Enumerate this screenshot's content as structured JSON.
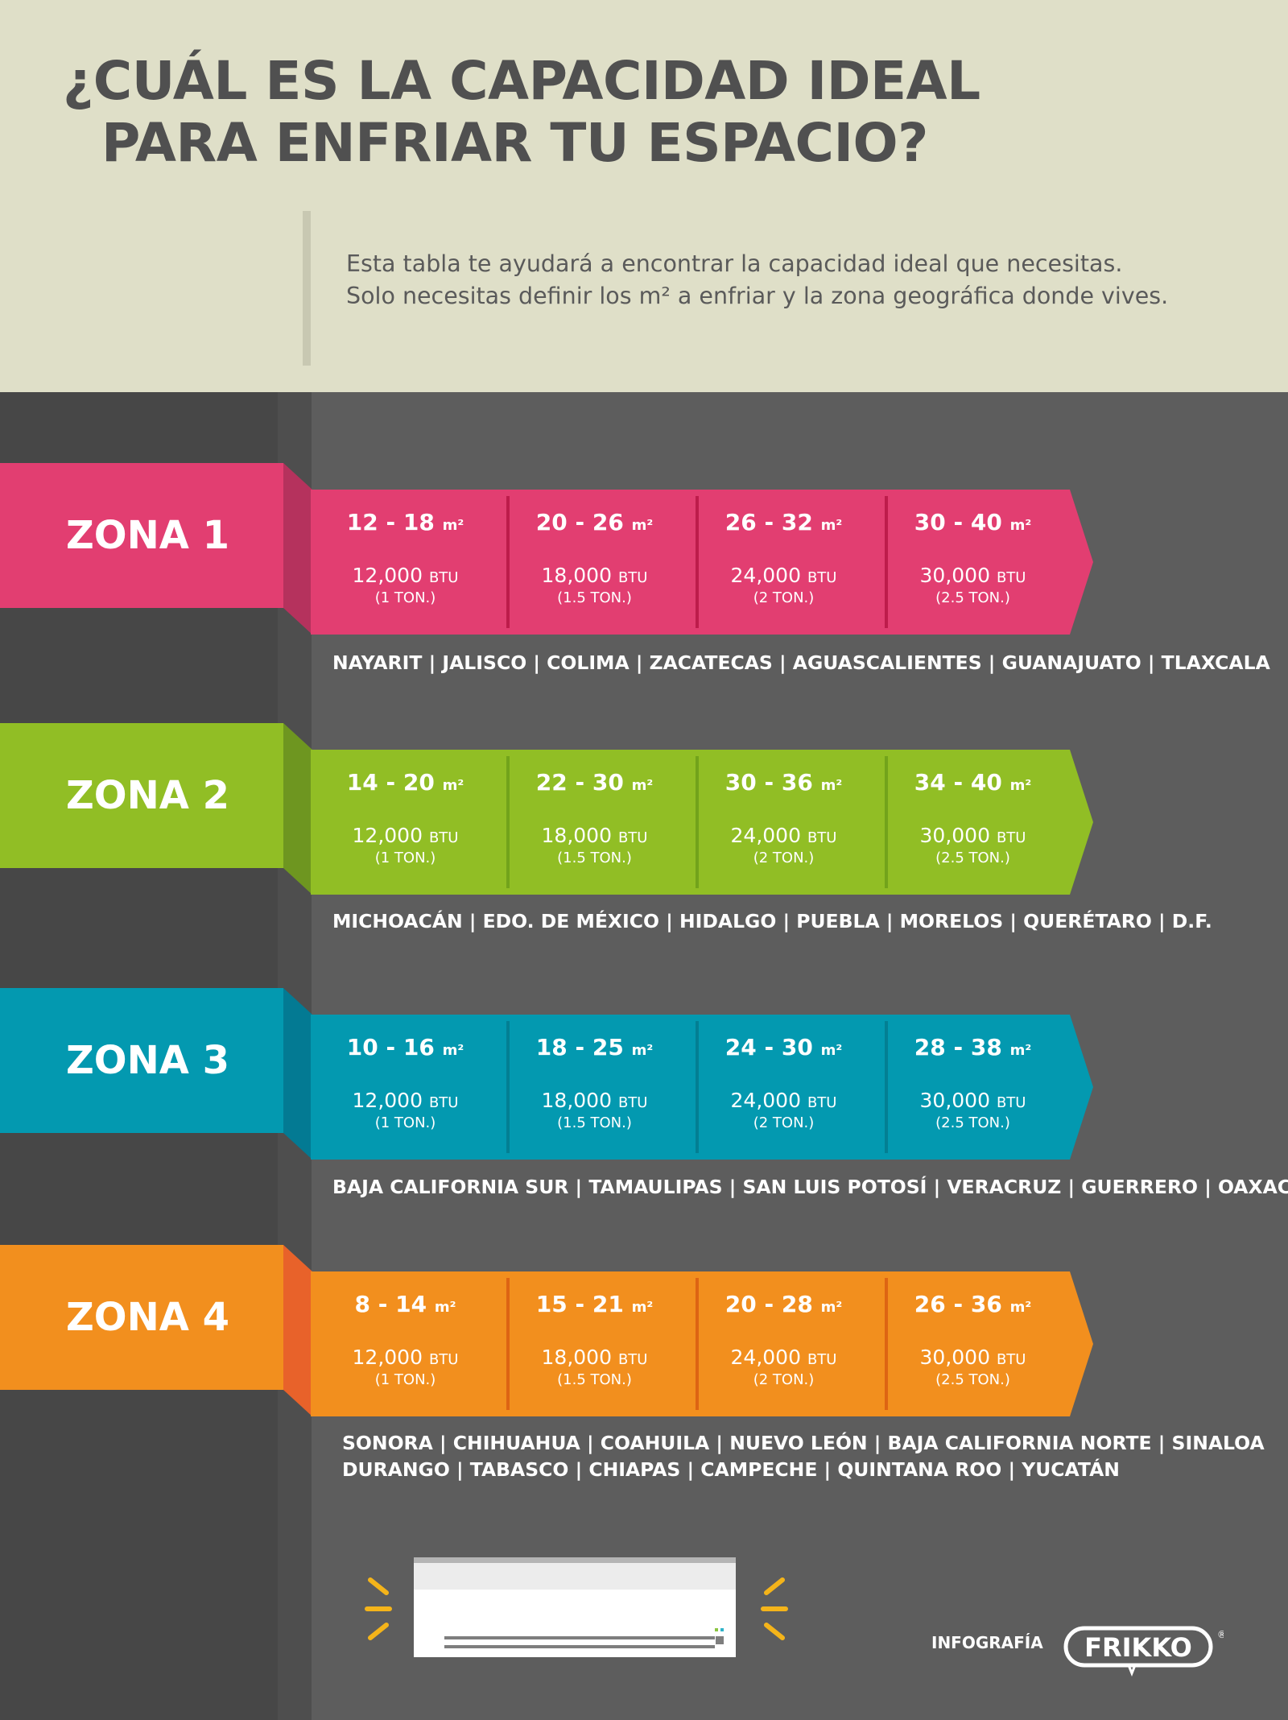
{
  "title": {
    "line1": "¿CUÁL ES LA CAPACIDAD IDEAL",
    "line2": "PARA ENFRIAR TU ESPACIO?"
  },
  "intro": {
    "line1": "Esta tabla te ayudará a encontrar la capacidad ideal que necesitas.",
    "line2": "Solo necesitas definir los  m² a enfriar y la zona geográfica donde vives."
  },
  "area_unit": "m²",
  "btu_unit": "BTU",
  "zones": [
    {
      "label": "ZONA 1",
      "color": "#e23e71",
      "fold_color": "#b5325d",
      "sep_color": "#bd1c4b",
      "cells": [
        {
          "range": "12 - 18",
          "btu": "12,000",
          "tons": "(1 TON.)"
        },
        {
          "range": "20 - 26",
          "btu": "18,000",
          "tons": "(1.5 TON.)"
        },
        {
          "range": "26 - 32",
          "btu": "24,000",
          "tons": "(2 TON.)"
        },
        {
          "range": "30 - 40",
          "btu": "30,000",
          "tons": "(2.5 TON.)"
        }
      ],
      "states": [
        "NAYARIT | JALISCO | COLIMA | ZACATECAS | AGUASCALIENTES | GUANAJUATO | TLAXCALA"
      ]
    },
    {
      "label": "ZONA 2",
      "color": "#91be25",
      "fold_color": "#6e9620",
      "sep_color": "#72a31b",
      "cells": [
        {
          "range": "14 - 20",
          "btu": "12,000",
          "tons": "(1 TON.)"
        },
        {
          "range": "22 - 30",
          "btu": "18,000",
          "tons": "(1.5 TON.)"
        },
        {
          "range": "30 - 36",
          "btu": "24,000",
          "tons": "(2 TON.)"
        },
        {
          "range": "34 - 40",
          "btu": "30,000",
          "tons": "(2.5 TON.)"
        }
      ],
      "states": [
        "MICHOACÁN | EDO. DE MÉXICO | HIDALGO | PUEBLA | MORELOS | QUERÉTARO | D.F."
      ]
    },
    {
      "label": "ZONA 3",
      "color": "#0399b0",
      "fold_color": "#037a93",
      "sep_color": "#037f93",
      "cells": [
        {
          "range": "10 - 16",
          "btu": "12,000",
          "tons": "(1 TON.)"
        },
        {
          "range": "18 - 25",
          "btu": "18,000",
          "tons": "(1.5 TON.)"
        },
        {
          "range": "24 - 30",
          "btu": "24,000",
          "tons": "(2 TON.)"
        },
        {
          "range": "28 - 38",
          "btu": "30,000",
          "tons": "(2.5 TON.)"
        }
      ],
      "states": [
        "BAJA CALIFORNIA SUR | TAMAULIPAS | SAN LUIS POTOSÍ | VERACRUZ | GUERRERO | OAXACA"
      ]
    },
    {
      "label": "ZONA 4",
      "color": "#f28f1e",
      "fold_color": "#e8622a",
      "sep_color": "#dd6413",
      "cells": [
        {
          "range": "8 - 14",
          "btu": "12,000",
          "tons": "(1 TON.)"
        },
        {
          "range": "15 - 21",
          "btu": "18,000",
          "tons": "(1.5 TON.)"
        },
        {
          "range": "20 - 28",
          "btu": "24,000",
          "tons": "(2 TON.)"
        },
        {
          "range": "26 - 36",
          "btu": "30,000",
          "tons": "(2.5 TON.)"
        }
      ],
      "states": [
        "SONORA | CHIHUAHUA | COAHUILA | NUEVO LEÓN | BAJA CALIFORNIA NORTE | SINALOA",
        "DURANGO | TABASCO | CHIAPAS | CAMPECHE | QUINTANA ROO | YUCATÁN"
      ]
    }
  ],
  "footer": {
    "infografia": "INFOGRAFÍA",
    "brand": "FRIKKO",
    "registered": "®",
    "brand_icon": "frikko-logo",
    "illustration_icon": "air-conditioner-icon"
  }
}
